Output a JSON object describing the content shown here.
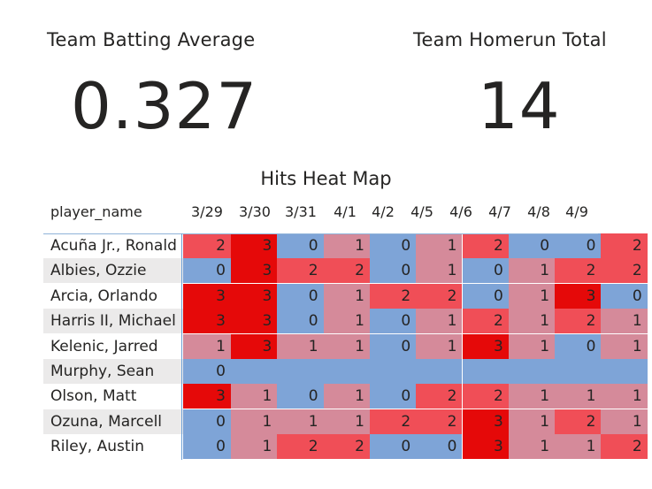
{
  "kpis": {
    "batting_avg_title": "Team Batting Average",
    "batting_avg_value": "0.327",
    "homerun_title": "Team Homerun Total",
    "homerun_value": "14"
  },
  "heatmap": {
    "title": "Hits Heat Map",
    "row_header": "player_name",
    "dates": [
      "3/29",
      "3/30",
      "3/31",
      "4/1",
      "4/2",
      "4/5",
      "4/6",
      "4/7",
      "4/8",
      "4/9"
    ],
    "colors": {
      "0": "#7ea4d7",
      "1": "#d58a9a",
      "2": "#f04e57",
      "3": "#e50909",
      "empty": "#7ea4d7"
    },
    "rows": [
      {
        "name": "Acuña Jr., Ronald",
        "values": [
          "2",
          "3",
          "0",
          "1",
          "0",
          "1",
          "2",
          "0",
          "0",
          "2"
        ]
      },
      {
        "name": "Albies, Ozzie",
        "values": [
          "0",
          "3",
          "2",
          "2",
          "0",
          "1",
          "0",
          "1",
          "2",
          "2"
        ]
      },
      {
        "name": "Arcia, Orlando",
        "values": [
          "3",
          "3",
          "0",
          "1",
          "2",
          "2",
          "0",
          "1",
          "3",
          "0"
        ]
      },
      {
        "name": "Harris II, Michael",
        "values": [
          "3",
          "3",
          "0",
          "1",
          "0",
          "1",
          "2",
          "1",
          "2",
          "1"
        ]
      },
      {
        "name": "Kelenic, Jarred",
        "values": [
          "1",
          "3",
          "1",
          "1",
          "0",
          "1",
          "3",
          "1",
          "0",
          "1"
        ]
      },
      {
        "name": "Murphy, Sean",
        "values": [
          "0",
          "",
          "",
          "",
          "",
          "",
          "",
          "",
          "",
          ""
        ]
      },
      {
        "name": "Olson, Matt",
        "values": [
          "3",
          "1",
          "0",
          "1",
          "0",
          "2",
          "2",
          "1",
          "1",
          "1"
        ]
      },
      {
        "name": "Ozuna, Marcell",
        "values": [
          "0",
          "1",
          "1",
          "1",
          "2",
          "2",
          "3",
          "1",
          "2",
          "1"
        ]
      },
      {
        "name": "Riley, Austin",
        "values": [
          "0",
          "1",
          "2",
          "2",
          "0",
          "0",
          "3",
          "1",
          "1",
          "2"
        ]
      }
    ]
  }
}
